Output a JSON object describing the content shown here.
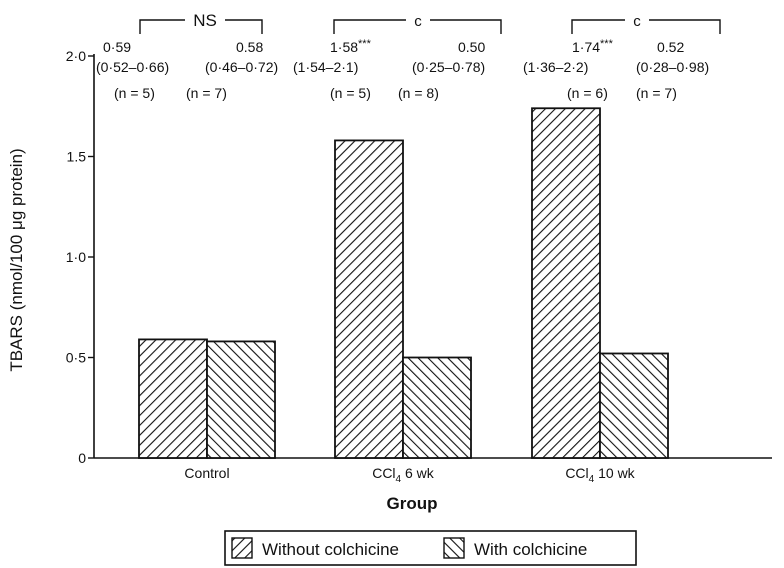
{
  "chart_data": {
    "type": "bar",
    "xlabel": "Group",
    "ylabel": "TBARS (nmol/100 μg protein)",
    "ylim": [
      0,
      2.0
    ],
    "y_ticks": [
      "0",
      "0·5",
      "1·0",
      "1.5",
      "2·0"
    ],
    "categories": [
      "Control",
      "CCl4 6 wk",
      "CCl4 10 wk"
    ],
    "category_labels": [
      {
        "main": "Control",
        "sub": "",
        "rest": ""
      },
      {
        "main": "CCl",
        "sub": "4",
        "rest": " 6 wk"
      },
      {
        "main": "CCl",
        "sub": "4",
        "rest": " 10 wk"
      }
    ],
    "series": [
      {
        "name": "Without colchicine",
        "hatch": "forward",
        "values": [
          0.59,
          1.58,
          1.74
        ],
        "value_labels": [
          "0·59",
          "1·58***",
          "1·74***"
        ],
        "range_labels": [
          "(0·52–0·66)",
          "(1·54–2·1)",
          "(1·36–2·2)"
        ],
        "n_labels": [
          "(n = 5)",
          "(n = 5)",
          "(n = 6)"
        ]
      },
      {
        "name": "With colchicine",
        "hatch": "backward",
        "values": [
          0.58,
          0.5,
          0.52
        ],
        "value_labels": [
          "0.58",
          "0.50",
          "0.52"
        ],
        "range_labels": [
          "(0·46–0·72)",
          "(0·25–0·78)",
          "(0·28–0·98)"
        ],
        "n_labels": [
          "(n = 7)",
          "(n = 8)",
          "(n = 7)"
        ]
      }
    ],
    "significance": [
      "NS",
      "c",
      "c"
    ],
    "legend_position": "bottom-center",
    "grid": false
  }
}
